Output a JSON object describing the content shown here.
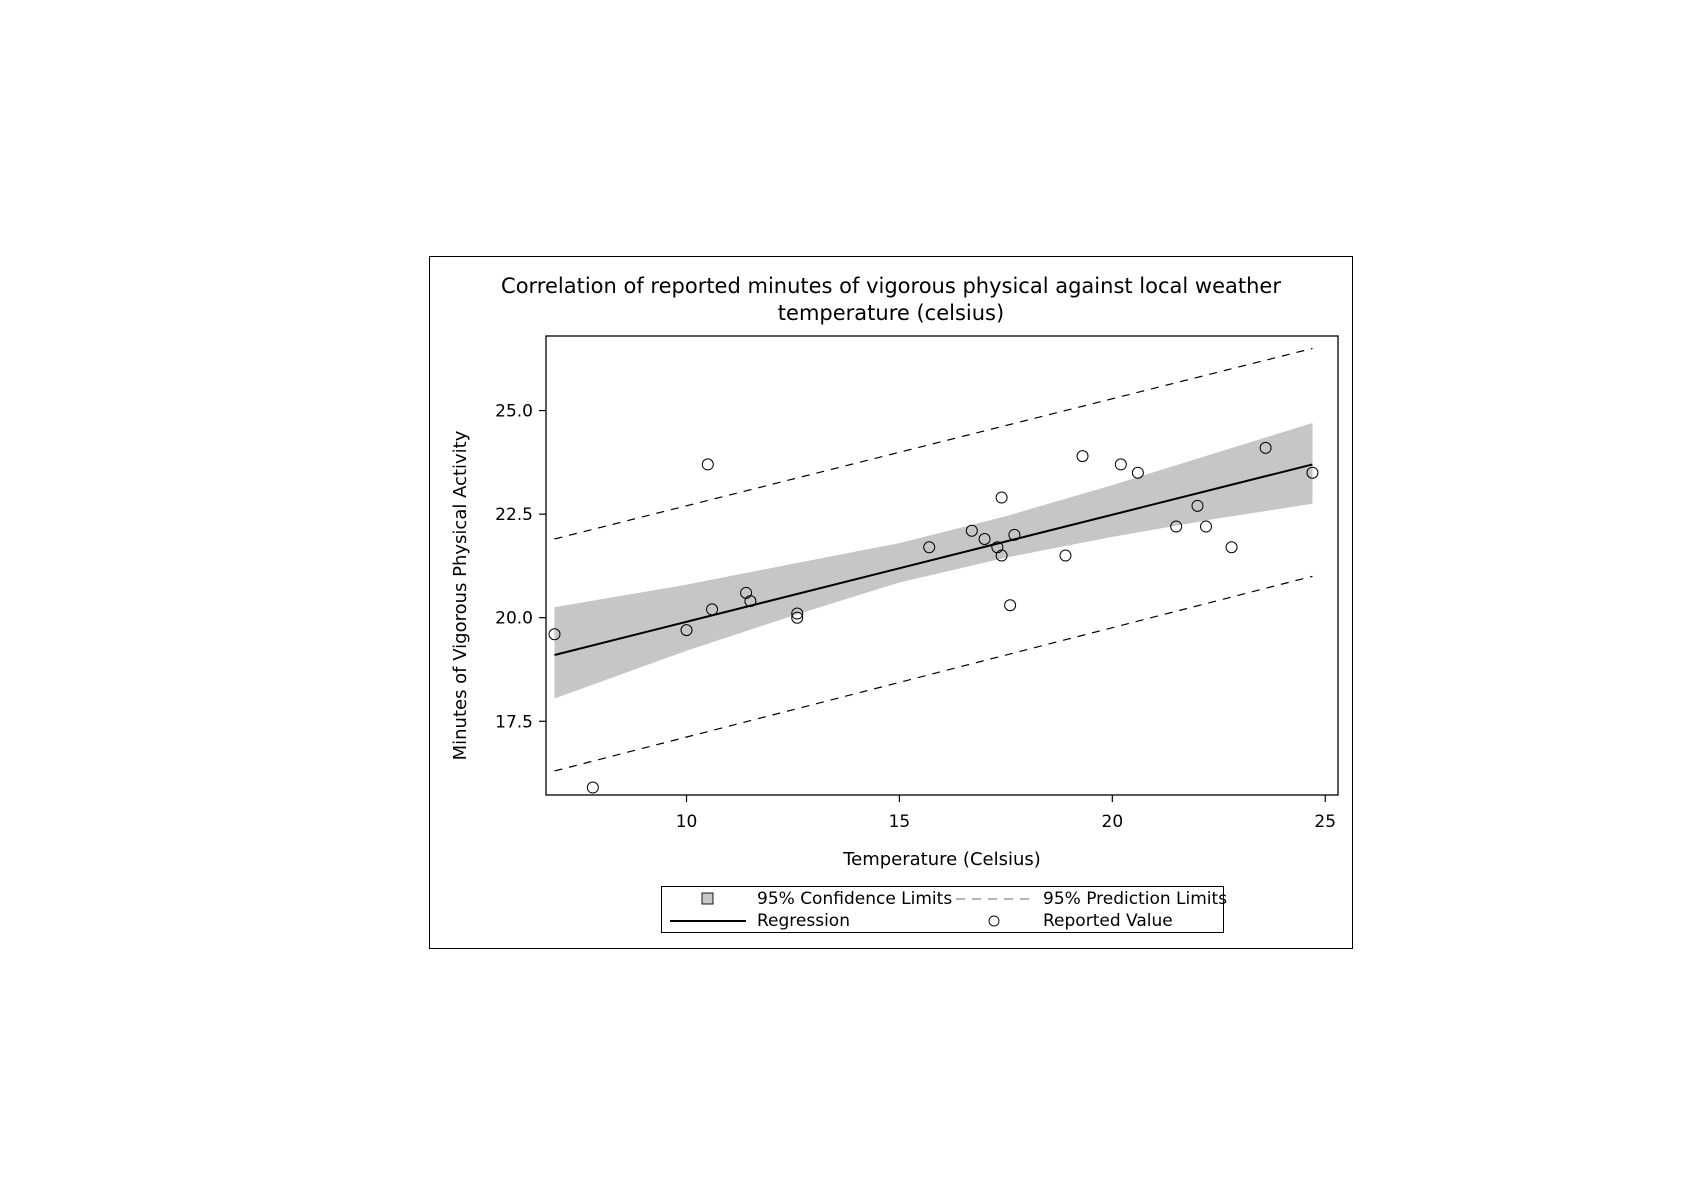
{
  "chart_data": {
    "type": "scatter",
    "title": "Correlation of reported minutes of vigorous physical against local weather",
    "subtitle": "temperature (celsius)",
    "xlabel": "Temperature (Celsius)",
    "ylabel": "Minutes of Vigorous Physical Activity",
    "xlim": [
      6.7,
      25.3
    ],
    "ylim": [
      15.72,
      26.8
    ],
    "x_ticks": [
      10,
      15,
      20,
      25
    ],
    "x_tick_labels": [
      "10",
      "15",
      "20",
      "25"
    ],
    "y_ticks": [
      17.5,
      20.0,
      22.5,
      25.0
    ],
    "y_tick_labels": [
      "17.5",
      "20.0",
      "22.5",
      "25.0"
    ],
    "grid": false,
    "legend_position": "bottom",
    "series": [
      {
        "name": "Reported Value",
        "kind": "scatter",
        "points": [
          {
            "x": 6.9,
            "y": 19.6
          },
          {
            "x": 7.8,
            "y": 15.9
          },
          {
            "x": 10.0,
            "y": 19.7
          },
          {
            "x": 10.5,
            "y": 23.7
          },
          {
            "x": 10.6,
            "y": 20.2
          },
          {
            "x": 11.4,
            "y": 20.6
          },
          {
            "x": 11.5,
            "y": 20.4
          },
          {
            "x": 12.6,
            "y": 20.1
          },
          {
            "x": 12.6,
            "y": 20.0
          },
          {
            "x": 15.7,
            "y": 21.7
          },
          {
            "x": 16.7,
            "y": 22.1
          },
          {
            "x": 17.0,
            "y": 21.9
          },
          {
            "x": 17.3,
            "y": 21.7
          },
          {
            "x": 17.4,
            "y": 21.5
          },
          {
            "x": 17.4,
            "y": 22.9
          },
          {
            "x": 17.6,
            "y": 20.3
          },
          {
            "x": 17.7,
            "y": 22.0
          },
          {
            "x": 18.9,
            "y": 21.5
          },
          {
            "x": 19.3,
            "y": 23.9
          },
          {
            "x": 20.2,
            "y": 23.7
          },
          {
            "x": 20.6,
            "y": 23.5
          },
          {
            "x": 21.5,
            "y": 22.2
          },
          {
            "x": 22.0,
            "y": 22.7
          },
          {
            "x": 22.2,
            "y": 22.2
          },
          {
            "x": 22.8,
            "y": 21.7
          },
          {
            "x": 23.6,
            "y": 24.1
          },
          {
            "x": 24.7,
            "y": 23.5
          }
        ]
      },
      {
        "name": "Regression",
        "kind": "line",
        "points": [
          {
            "x": 6.9,
            "y": 19.1
          },
          {
            "x": 24.7,
            "y": 23.7
          }
        ]
      },
      {
        "name": "95% Confidence Limits",
        "kind": "band",
        "x": [
          6.9,
          10.0,
          12.5,
          15.0,
          17.5,
          20.0,
          22.5,
          24.7
        ],
        "lower": [
          18.05,
          19.2,
          20.05,
          20.85,
          21.45,
          21.95,
          22.4,
          22.75
        ],
        "upper": [
          20.25,
          20.8,
          21.3,
          21.8,
          22.45,
          23.2,
          24.0,
          24.7
        ]
      },
      {
        "name": "95% Prediction Limits",
        "kind": "dashed",
        "x": [
          6.9,
          24.7
        ],
        "lower": [
          16.3,
          21.0
        ],
        "upper": [
          21.9,
          26.5
        ]
      }
    ],
    "colors": {
      "band": "#c6c6c6",
      "line": "#000000",
      "marker_stroke": "#000000",
      "legend_dash": "#8a8a8a"
    },
    "legend": [
      {
        "label": "95% Confidence Limits",
        "symbol": "square-icon"
      },
      {
        "label": "95% Prediction Limits",
        "symbol": "dashed-line-icon"
      },
      {
        "label": "Regression",
        "symbol": "solid-line-icon"
      },
      {
        "label": "Reported Value",
        "symbol": "circle-icon"
      }
    ]
  }
}
